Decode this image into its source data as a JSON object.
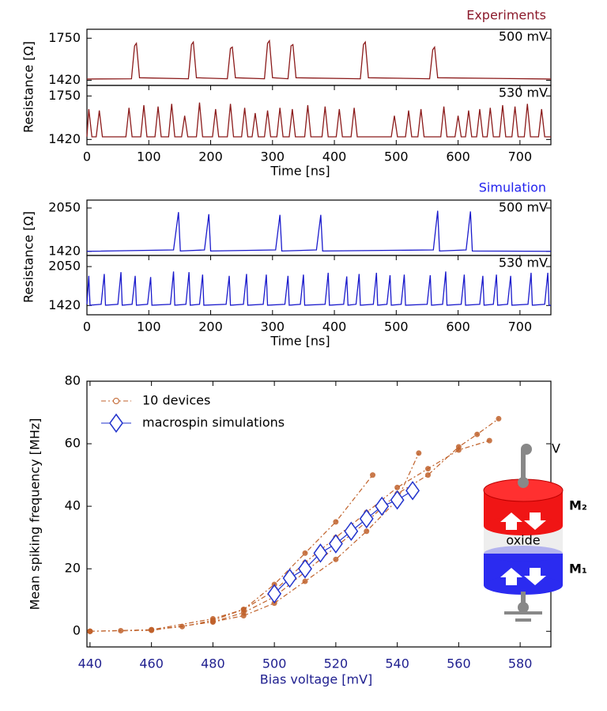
{
  "chart_data": [
    {
      "type": "line",
      "title": "Experiments",
      "annotation": "500 mV",
      "ylabel": "Resistance [Ω]",
      "xlim": [
        0,
        750
      ],
      "ylim": [
        1380,
        1820
      ],
      "yticks": [
        1420,
        1750
      ],
      "series": [
        {
          "color": "#8b1a1a",
          "x": [
            0,
            72,
            77,
            80,
            85,
            164,
            169,
            172,
            177,
            227,
            232,
            235,
            240,
            287,
            292,
            295,
            300,
            325,
            330,
            333,
            338,
            442,
            447,
            450,
            455,
            554,
            559,
            562,
            567,
            750
          ],
          "values": [
            1430,
            1432,
            1690,
            1710,
            1440,
            1432,
            1700,
            1720,
            1440,
            1432,
            1670,
            1680,
            1440,
            1432,
            1710,
            1730,
            1440,
            1432,
            1690,
            1700,
            1440,
            1432,
            1700,
            1720,
            1440,
            1432,
            1660,
            1680,
            1440,
            1430
          ]
        }
      ]
    },
    {
      "type": "line",
      "annotation": "530 mV",
      "xlabel": "Time [ns]",
      "xlim": [
        0,
        750
      ],
      "xticks": [
        0,
        100,
        200,
        300,
        400,
        500,
        600,
        700
      ],
      "ylim": [
        1380,
        1830
      ],
      "yticks": [
        1420,
        1750
      ],
      "series": [
        {
          "color": "#8b1a1a",
          "x": [
            0,
            3,
            8,
            15,
            20,
            25,
            63,
            68,
            73,
            87,
            92,
            97,
            110,
            115,
            120,
            132,
            137,
            142,
            153,
            158,
            163,
            177,
            182,
            187,
            203,
            208,
            213,
            227,
            232,
            237,
            250,
            255,
            260,
            267,
            272,
            277,
            287,
            292,
            297,
            307,
            312,
            317,
            327,
            332,
            337,
            352,
            357,
            362,
            380,
            385,
            390,
            403,
            408,
            413,
            427,
            432,
            437,
            492,
            497,
            502,
            515,
            520,
            525,
            535,
            540,
            545,
            572,
            577,
            582,
            595,
            600,
            605,
            612,
            617,
            622,
            630,
            635,
            640,
            647,
            652,
            657,
            667,
            672,
            677,
            687,
            692,
            697,
            707,
            712,
            717,
            730,
            735,
            740,
            750
          ],
          "values": [
            1440,
            1650,
            1440,
            1440,
            1640,
            1440,
            1440,
            1660,
            1440,
            1440,
            1680,
            1440,
            1440,
            1670,
            1440,
            1440,
            1690,
            1440,
            1440,
            1600,
            1440,
            1440,
            1700,
            1440,
            1440,
            1650,
            1440,
            1440,
            1690,
            1440,
            1440,
            1660,
            1440,
            1440,
            1620,
            1440,
            1440,
            1640,
            1440,
            1440,
            1660,
            1440,
            1440,
            1650,
            1440,
            1440,
            1680,
            1440,
            1440,
            1670,
            1440,
            1440,
            1650,
            1440,
            1440,
            1660,
            1440,
            1440,
            1600,
            1440,
            1440,
            1640,
            1440,
            1440,
            1650,
            1440,
            1440,
            1670,
            1440,
            1440,
            1600,
            1440,
            1440,
            1640,
            1440,
            1440,
            1650,
            1440,
            1440,
            1660,
            1440,
            1440,
            1680,
            1440,
            1440,
            1670,
            1440,
            1440,
            1690,
            1440,
            1440,
            1650,
            1440,
            1440
          ]
        }
      ]
    },
    {
      "type": "line",
      "title": "Simulation",
      "annotation": "500 mV",
      "ylabel": "Resistance [Ω]",
      "xlim": [
        0,
        750
      ],
      "ylim": [
        1360,
        2165
      ],
      "yticks": [
        1420,
        2050
      ],
      "series": [
        {
          "color": "#1a1acc",
          "x": [
            0,
            140,
            148,
            151,
            190,
            197,
            200,
            305,
            312,
            315,
            371,
            378,
            381,
            560,
            567,
            570,
            613,
            620,
            623,
            750
          ],
          "values": [
            1420,
            1440,
            1990,
            1425,
            1440,
            1960,
            1425,
            1440,
            1950,
            1425,
            1440,
            1950,
            1425,
            1440,
            2010,
            1425,
            1440,
            2000,
            1425,
            1420
          ]
        }
      ]
    },
    {
      "type": "line",
      "annotation": "530 mV",
      "xlabel": "Time [ns]",
      "xlim": [
        0,
        750
      ],
      "xticks": [
        0,
        100,
        200,
        300,
        400,
        500,
        600,
        700
      ],
      "ylim": [
        1270,
        2230
      ],
      "yticks": [
        1420,
        2050
      ],
      "series": [
        {
          "color": "#1a1acc",
          "x": [
            0,
            3,
            5,
            23,
            28,
            30,
            50,
            55,
            57,
            73,
            78,
            80,
            98,
            103,
            105,
            135,
            140,
            142,
            160,
            165,
            167,
            182,
            187,
            189,
            225,
            230,
            232,
            253,
            258,
            260,
            285,
            290,
            292,
            320,
            325,
            327,
            345,
            350,
            352,
            385,
            390,
            392,
            415,
            420,
            422,
            435,
            440,
            442,
            463,
            468,
            470,
            485,
            490,
            492,
            508,
            513,
            515,
            550,
            555,
            557,
            575,
            580,
            582,
            605,
            610,
            612,
            635,
            640,
            642,
            657,
            662,
            664,
            680,
            685,
            687,
            713,
            718,
            720,
            740,
            745,
            747,
            750
          ],
          "values": [
            1440,
            1900,
            1425,
            1440,
            1930,
            1425,
            1440,
            1960,
            1425,
            1440,
            1900,
            1425,
            1440,
            1880,
            1425,
            1440,
            1970,
            1425,
            1440,
            1960,
            1425,
            1440,
            1920,
            1425,
            1440,
            1900,
            1425,
            1440,
            1930,
            1425,
            1440,
            1920,
            1425,
            1440,
            1900,
            1425,
            1440,
            1920,
            1425,
            1440,
            1950,
            1425,
            1440,
            1890,
            1425,
            1440,
            1930,
            1425,
            1440,
            1950,
            1425,
            1440,
            1910,
            1425,
            1440,
            1920,
            1425,
            1440,
            1910,
            1425,
            1440,
            1970,
            1425,
            1440,
            1920,
            1425,
            1440,
            1900,
            1425,
            1440,
            1920,
            1425,
            1440,
            1900,
            1425,
            1440,
            1950,
            1425,
            1440,
            1950,
            1425,
            1420
          ]
        }
      ]
    },
    {
      "type": "line",
      "xlabel": "Bias voltage [mV]",
      "ylabel": "Mean spiking frequency [MHz]",
      "xlim": [
        439,
        590
      ],
      "xticks": [
        440,
        460,
        480,
        500,
        520,
        540,
        560,
        580
      ],
      "ylim": [
        -5,
        80
      ],
      "yticks": [
        0,
        20,
        40,
        60,
        80
      ],
      "legend": "upper left",
      "series": [
        {
          "name": "10 devices",
          "color": "#c0622b",
          "marker": "circle",
          "linestyle": "dashdot",
          "x": [
            440,
            450,
            460,
            470,
            480,
            490,
            500,
            510,
            520,
            530,
            540,
            550,
            560,
            570,
            null,
            440,
            460,
            480,
            490,
            500,
            510,
            520,
            530,
            540,
            550,
            560,
            566,
            573,
            null,
            440,
            460,
            480,
            490,
            500,
            510,
            520,
            532,
            null,
            440,
            460,
            480,
            490,
            500,
            510,
            520,
            530,
            540,
            547
          ],
          "values": [
            0,
            0.2,
            0.5,
            1.5,
            3.5,
            7,
            13,
            22,
            30,
            38,
            46,
            52,
            58,
            61,
            null,
            0,
            0.4,
            3,
            6,
            11,
            19,
            27,
            35,
            44,
            50,
            59,
            63,
            68,
            null,
            0,
            0.5,
            4,
            7,
            15,
            25,
            35,
            50,
            null,
            0,
            0.3,
            3,
            5,
            9,
            16,
            23,
            32,
            42,
            57
          ]
        },
        {
          "name": "macrospin simulations",
          "color": "#2233cc",
          "marker": "diamond",
          "linestyle": "solid",
          "x": [
            500,
            505,
            510,
            515,
            520,
            525,
            530,
            535,
            540,
            545
          ],
          "values": [
            12,
            17,
            20,
            25,
            28,
            32,
            36,
            40,
            42,
            45
          ]
        }
      ]
    }
  ],
  "diagram": {
    "labels": {
      "v": "V",
      "m2": "M₂",
      "oxide": "oxide",
      "m1": "M₁"
    }
  }
}
